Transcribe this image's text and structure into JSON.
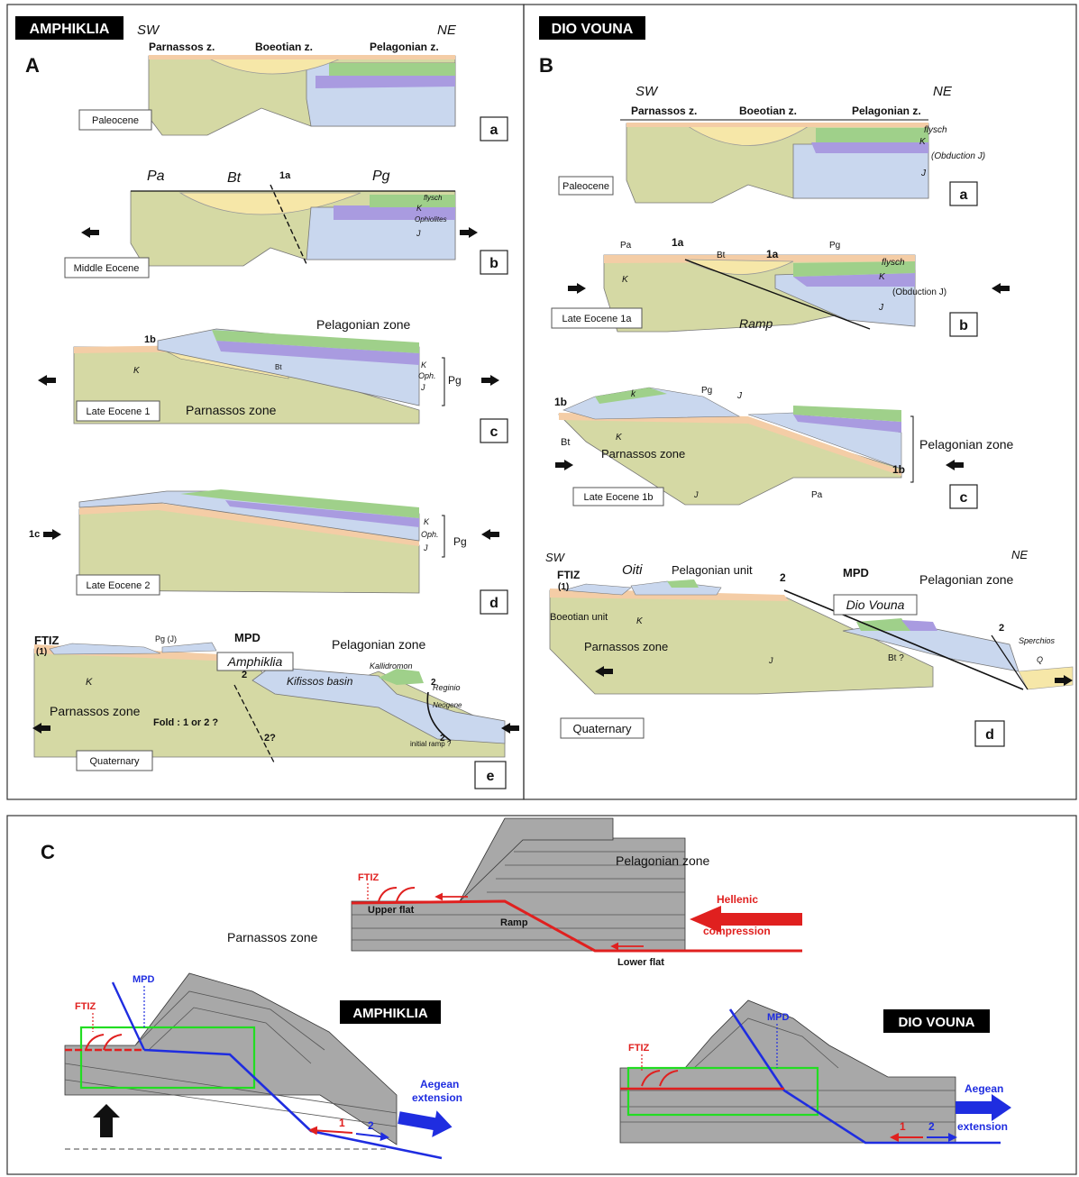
{
  "panel_A": {
    "header": "AMPHIKLIA",
    "letter": "A",
    "sw": "SW",
    "ne": "NE",
    "zones_top": [
      "Parnassos z.",
      "Boeotian z.",
      "Pelagonian z."
    ],
    "a": {
      "age": "Paleocene",
      "tag": "a"
    },
    "b": {
      "age": "Middle Eocene",
      "tag": "b",
      "pa": "Pa",
      "bt": "Bt",
      "pg": "Pg",
      "t1a": "1a",
      "flysch": "flysch",
      "k": "K",
      "oph": "Ophiolites",
      "j": "J"
    },
    "c": {
      "age": "Late Eocene 1",
      "tag": "c",
      "t1b": "1b",
      "pelagonian": "Pelagonian zone",
      "parnassos": "Parnassos zone",
      "bt": "Bt",
      "k": "K",
      "oph": "Oph.",
      "j": "J",
      "pg": "Pg"
    },
    "d": {
      "age": "Late Eocene 2",
      "tag": "d",
      "t1c": "1c",
      "k": "K",
      "oph": "Oph.",
      "j": "J",
      "pg": "Pg"
    },
    "e": {
      "age": "Quaternary",
      "tag": "e",
      "ftiz": "FTIZ",
      "one": "(1)",
      "pgj": "Pg (J)",
      "mpd": "MPD",
      "amphiklia": "Amphiklia",
      "pelagonian": "Pelagonian zone",
      "kifissos": "Kifissos basin",
      "kallidromon": "Kallidromon",
      "reginio": "Reginio",
      "neogene": "Neogene",
      "parnassos": "Parnassos zone",
      "k": "K",
      "fold": "Fold : 1 or 2 ?",
      "two": "2",
      "twoq": "2?",
      "initial": "initial ramp ?"
    }
  },
  "panel_B": {
    "header": "DIO VOUNA",
    "letter": "B",
    "a": {
      "age": "Paleocene",
      "tag": "a",
      "sw": "SW",
      "ne": "NE",
      "zones": [
        "Parnassos z.",
        "Boeotian z.",
        "Pelagonian z."
      ],
      "flysch": "flysch",
      "k": "K",
      "obduction": "(Obduction J)",
      "j": "J"
    },
    "b": {
      "age": "Late Eocene 1a",
      "tag": "b",
      "pa": "Pa",
      "bt": "Bt",
      "pg": "Pg",
      "t1a": "1a",
      "flysch": "flysch",
      "k": "K",
      "obduction": "(Obduction J)",
      "j": "J",
      "ramp": "Ramp"
    },
    "c": {
      "age": "Late Eocene 1b",
      "tag": "c",
      "t1b": "1b",
      "k": "k",
      "pg": "Pg",
      "j": "J",
      "bt": "Bt",
      "kk": "K",
      "parnassos": "Parnassos zone",
      "pa": "Pa",
      "pelagonian": "Pelagonian zone"
    },
    "d": {
      "age": "Quaternary",
      "tag": "d",
      "sw": "SW",
      "ne": "NE",
      "ftiz": "FTIZ",
      "one": "(1)",
      "oiti": "Oiti",
      "pel_unit": "Pelagonian unit",
      "two": "2",
      "mpd": "MPD",
      "dio": "Dio Vouna",
      "pelagonian": "Pelagonian zone",
      "boeotian": "Boeotian unit",
      "k": "K",
      "parnassos": "Parnassos zone",
      "j": "J",
      "bt": "Bt ?",
      "sperchios": "Sperchios",
      "q": "Q"
    }
  },
  "panel_C": {
    "letter": "C",
    "top": {
      "ftiz": "FTIZ",
      "pelagonian": "Pelagonian zone",
      "upper_flat": "Upper flat",
      "ramp": "Ramp",
      "hellenic1": "Hellenic",
      "hellenic2": "compression",
      "parnassos": "Parnassos zone",
      "lower_flat": "Lower flat"
    },
    "left": {
      "header": "AMPHIKLIA",
      "mpd": "MPD",
      "ftiz": "FTIZ",
      "aegean1": "Aegean",
      "aegean2": "extension",
      "n1": "1",
      "n2": "2"
    },
    "right": {
      "header": "DIO VOUNA",
      "mpd": "MPD",
      "ftiz": "FTIZ",
      "aegean1": "Aegean",
      "aegean2": "extension",
      "n1": "1",
      "n2": "2"
    }
  },
  "colors": {
    "parnassos": "#d5d9a4",
    "flysch": "#f6e7a8",
    "pelagonian": "#c9d7ee",
    "ophiolite": "#a99be0",
    "cretaceous_green": "#9fd08a",
    "topsoil": "#f4cda6",
    "gray": "#a8a8a8",
    "red": "#e0201f",
    "blue": "#1f2de0",
    "green_box": "#22dd22"
  }
}
